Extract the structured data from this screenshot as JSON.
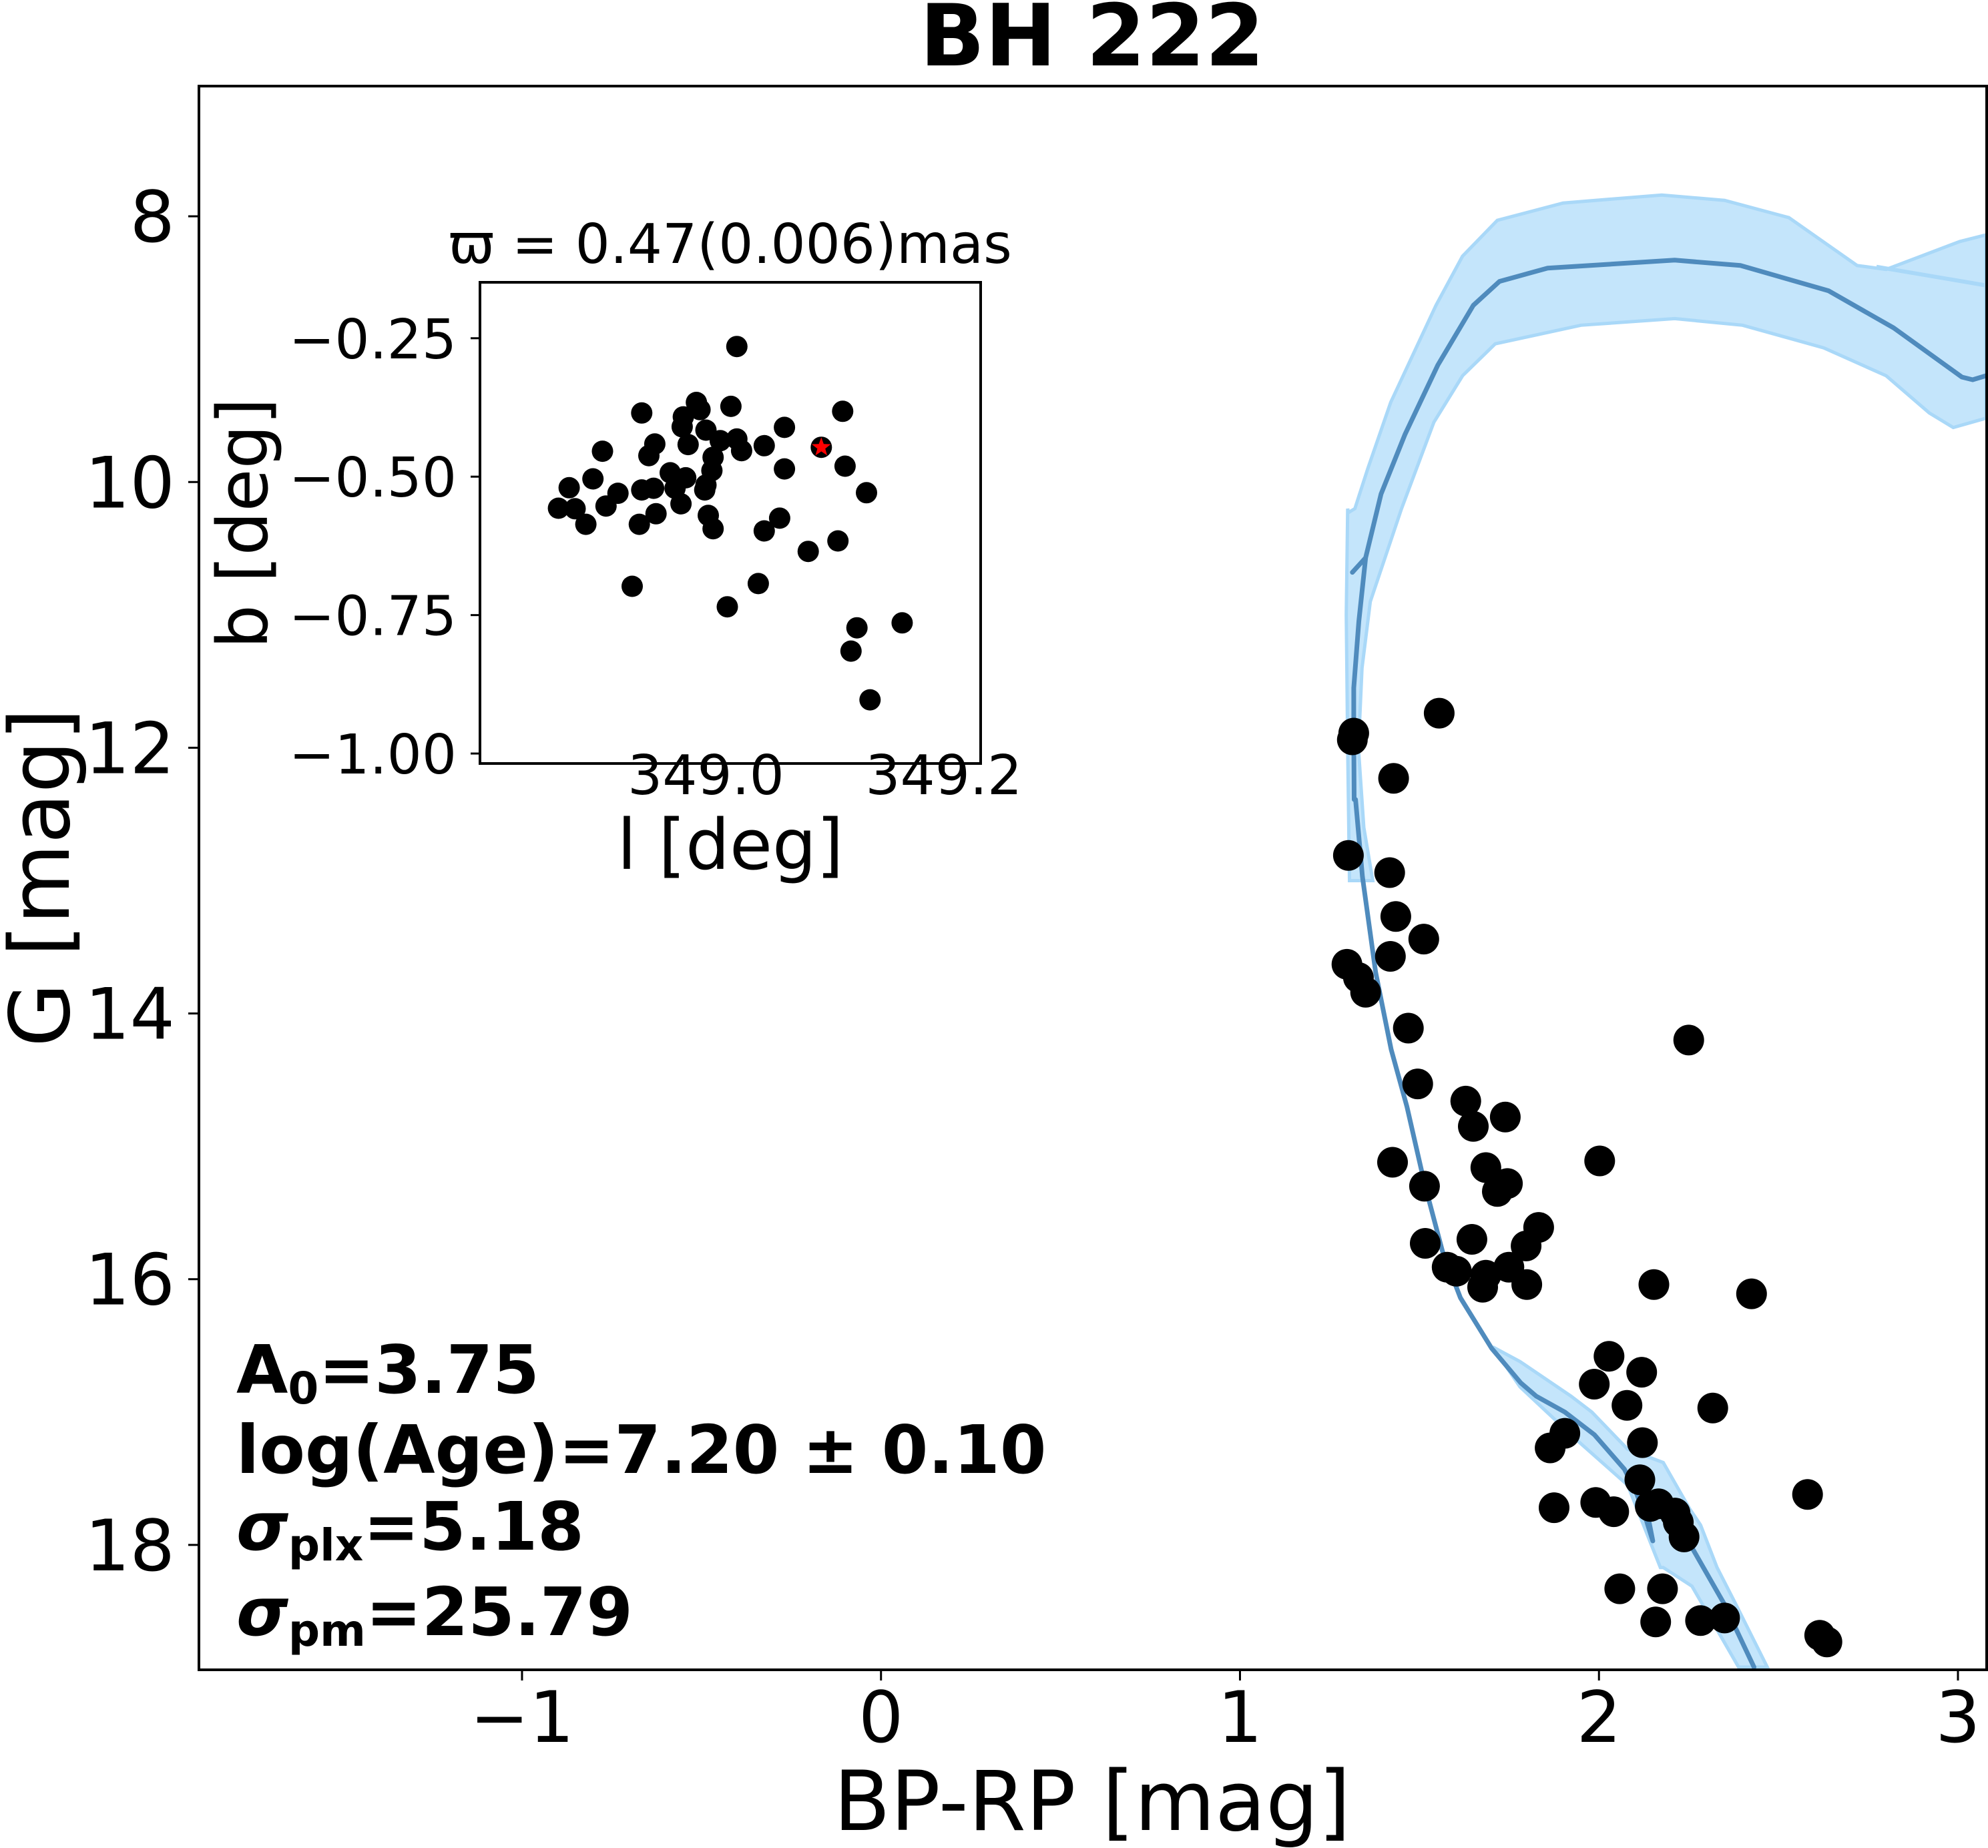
{
  "chart_data": [
    {
      "id": "main",
      "type": "scatter",
      "title": "BH 222",
      "xlabel": "BP-RP [mag]",
      "ylabel": "G [mag]",
      "xlim": [
        -1.9,
        3.08
      ],
      "ylim": [
        18.94,
        7.02
      ],
      "y_inverted": true,
      "grid": false,
      "xticks": [
        -1,
        0,
        1,
        2,
        3
      ],
      "xtick_labels": [
        "−1",
        "0",
        "1",
        "2",
        "3"
      ],
      "yticks": [
        8,
        10,
        12,
        14,
        16,
        18
      ],
      "ytick_labels": [
        "8",
        "10",
        "12",
        "14",
        "16",
        "18"
      ],
      "colors": {
        "points": "#000000",
        "isochrone": "#4f8bbd",
        "band_fill": "#c4e5fb",
        "band_edge": "#a9d8f8"
      },
      "points": {
        "name": "members",
        "x": [
          1.555,
          1.317,
          1.313,
          1.428,
          1.302,
          1.417,
          1.434,
          1.512,
          1.419,
          1.298,
          1.33,
          1.35,
          2.25,
          1.469,
          1.495,
          1.629,
          1.739,
          1.65,
          1.425,
          2.002,
          1.685,
          1.745,
          1.717,
          1.514,
          1.832,
          1.797,
          1.646,
          1.516,
          1.577,
          1.603,
          1.685,
          1.676,
          1.749,
          1.799,
          2.153,
          2.425,
          2.028,
          2.119,
          1.987,
          2.078,
          2.317,
          1.905,
          1.864,
          2.121,
          2.114,
          1.875,
          1.991,
          2.041,
          2.143,
          2.166,
          2.212,
          2.221,
          2.237,
          2.581,
          2.058,
          2.177,
          2.158,
          2.283,
          2.35,
          2.615,
          2.635
        ],
        "y": [
          11.74,
          11.89,
          11.94,
          12.23,
          12.81,
          12.94,
          13.27,
          13.44,
          13.57,
          13.63,
          13.73,
          13.84,
          14.2,
          14.11,
          14.53,
          14.66,
          14.78,
          14.85,
          15.12,
          15.11,
          15.16,
          15.28,
          15.34,
          15.3,
          15.61,
          15.75,
          15.7,
          15.73,
          15.91,
          15.94,
          15.97,
          16.06,
          15.91,
          16.04,
          16.04,
          16.11,
          16.58,
          16.7,
          16.79,
          16.95,
          16.97,
          17.16,
          17.27,
          17.23,
          17.51,
          17.72,
          17.68,
          17.75,
          17.71,
          17.69,
          17.76,
          17.83,
          17.94,
          17.62,
          18.33,
          18.33,
          18.58,
          18.57,
          18.55,
          18.68,
          18.73
        ]
      },
      "isochrone": {
        "name": "best-fit isochrone",
        "x": [
          2.432,
          2.348,
          2.259,
          2.237,
          2.183,
          2.154,
          2.134,
          2.15,
          2.129,
          2.104,
          2.071,
          1.987,
          1.905,
          1.825,
          1.782,
          1.701,
          1.614,
          1.564,
          1.514,
          1.465,
          1.421,
          1.378,
          1.341,
          1.322,
          1.318,
          1.317,
          1.317,
          1.331,
          1.35,
          1.313,
          1.35,
          1.393,
          1.46,
          1.551,
          1.65,
          1.723,
          1.857,
          2.211,
          2.394,
          2.639,
          2.821,
          3.011,
          3.041,
          3.078
        ],
        "y": [
          18.92,
          18.44,
          18.02,
          17.93,
          17.74,
          17.69,
          17.75,
          17.97,
          17.79,
          17.61,
          17.43,
          17.17,
          17.0,
          16.88,
          16.78,
          16.52,
          16.14,
          15.79,
          15.28,
          14.7,
          14.27,
          13.69,
          12.97,
          12.39,
          12.39,
          11.89,
          11.55,
          11.05,
          10.57,
          10.68,
          10.57,
          10.09,
          9.64,
          9.12,
          8.67,
          8.49,
          8.39,
          8.33,
          8.37,
          8.56,
          8.84,
          9.21,
          9.23,
          9.2
        ]
      },
      "isochrone_branch": {
        "x": [
          2.773,
          3.078
        ],
        "y": [
          8.38,
          8.52
        ]
      },
      "band_upper": {
        "name": "upper-age isochrone envelope",
        "x": [
          1.302,
          1.32,
          1.356,
          1.42,
          1.546,
          1.62,
          1.717,
          1.9,
          2.175,
          2.35,
          2.529,
          2.719,
          2.8,
          3.005,
          3.078,
          3.078
        ],
        "y": [
          10.23,
          10.2,
          9.9,
          9.4,
          8.67,
          8.3,
          8.03,
          7.9,
          7.84,
          7.88,
          8.01,
          8.37,
          8.4,
          8.19,
          8.14,
          9.52
        ]
      },
      "band_lower": {
        "x": [
          3.078,
          2.987,
          2.92,
          2.8,
          2.626,
          2.4,
          2.211,
          1.95,
          1.711,
          1.62,
          1.54,
          1.45,
          1.363,
          1.34,
          1.33,
          1.345,
          1.37
        ],
        "y": [
          9.52,
          9.59,
          9.48,
          9.2,
          8.99,
          8.82,
          8.77,
          8.82,
          8.96,
          9.2,
          9.55,
          10.2,
          10.9,
          11.4,
          12.0,
          12.6,
          13.0
        ]
      },
      "band_ms_left": {
        "x": [
          1.3,
          1.296,
          1.3,
          1.305
        ],
        "y": [
          10.2,
          11.0,
          12.0,
          13.0
        ]
      },
      "band_bottom_upper": {
        "x": [
          1.704,
          1.78,
          1.922,
          1.98,
          2.08,
          2.179,
          2.253,
          2.283,
          2.329,
          2.38,
          2.469
        ],
        "y": [
          16.51,
          16.62,
          16.88,
          17.0,
          17.28,
          17.38,
          17.73,
          17.85,
          18.17,
          18.44,
          18.92
        ]
      },
      "band_bottom_lower": {
        "x": [
          2.389,
          2.259,
          2.179,
          2.171,
          2.08,
          1.938,
          1.78,
          1.704
        ],
        "y": [
          18.92,
          18.31,
          18.17,
          18.17,
          17.55,
          17.21,
          16.81,
          16.51
        ]
      },
      "annotations": {
        "a0_label": "A",
        "a0_sub": "0",
        "a0_value": "=3.75",
        "age_text": "log(Age)=7.20 ± 0.10",
        "sigma_symbol": "σ",
        "plx_sub": "plx",
        "plx_value": "=5.18",
        "pm_sub": "pm",
        "pm_value": "=25.79"
      }
    },
    {
      "id": "inset",
      "type": "scatter",
      "title": "ϖ = 0.47(0.006)mas",
      "xlabel": "l [deg]",
      "ylabel": "b [deg]",
      "xlim": [
        348.81,
        349.231
      ],
      "ylim": [
        -1.018,
        -0.149
      ],
      "grid": false,
      "xticks": [
        349.0,
        349.2
      ],
      "xtick_labels": [
        "349.0",
        "349.2"
      ],
      "yticks": [
        -0.25,
        -0.5,
        -0.75,
        -1.0
      ],
      "ytick_labels": [
        "−0.25",
        "−0.50",
        "−0.75",
        "−1.00"
      ],
      "colors": {
        "points": "#000000",
        "highlight": "#ff0000"
      },
      "points": {
        "name": "members",
        "l": [
          349.026,
          348.946,
          348.992,
          349.021,
          349.115,
          348.981,
          348.995,
          348.98,
          349.0,
          349.066,
          349.012,
          349.026,
          348.957,
          348.985,
          349.049,
          349.03,
          348.913,
          349.097,
          348.952,
          349.006,
          349.117,
          349.066,
          348.97,
          349.005,
          348.983,
          348.905,
          348.885,
          348.946,
          348.956,
          348.926,
          349.0,
          349.135,
          348.974,
          348.999,
          348.876,
          348.89,
          348.916,
          348.979,
          348.958,
          349.002,
          348.899,
          348.944,
          349.006,
          349.062,
          349.049,
          349.111,
          349.086,
          348.938,
          349.044,
          349.018,
          349.127,
          349.165,
          349.122,
          349.138
        ],
        "b": [
          -0.265,
          -0.385,
          -0.366,
          -0.373,
          -0.382,
          -0.392,
          -0.379,
          -0.41,
          -0.416,
          -0.411,
          -0.435,
          -0.432,
          -0.441,
          -0.442,
          -0.444,
          -0.453,
          -0.454,
          -0.447,
          -0.462,
          -0.465,
          -0.481,
          -0.486,
          -0.493,
          -0.489,
          -0.502,
          -0.504,
          -0.52,
          -0.524,
          -0.521,
          -0.53,
          -0.515,
          -0.529,
          -0.521,
          -0.524,
          -0.557,
          -0.558,
          -0.553,
          -0.549,
          -0.567,
          -0.57,
          -0.586,
          -0.586,
          -0.594,
          -0.575,
          -0.598,
          -0.616,
          -0.635,
          -0.698,
          -0.693,
          -0.735,
          -0.773,
          -0.764,
          -0.815,
          -0.903
        ]
      },
      "highlight_star": {
        "l": 349.097,
        "b": -0.447
      }
    }
  ]
}
